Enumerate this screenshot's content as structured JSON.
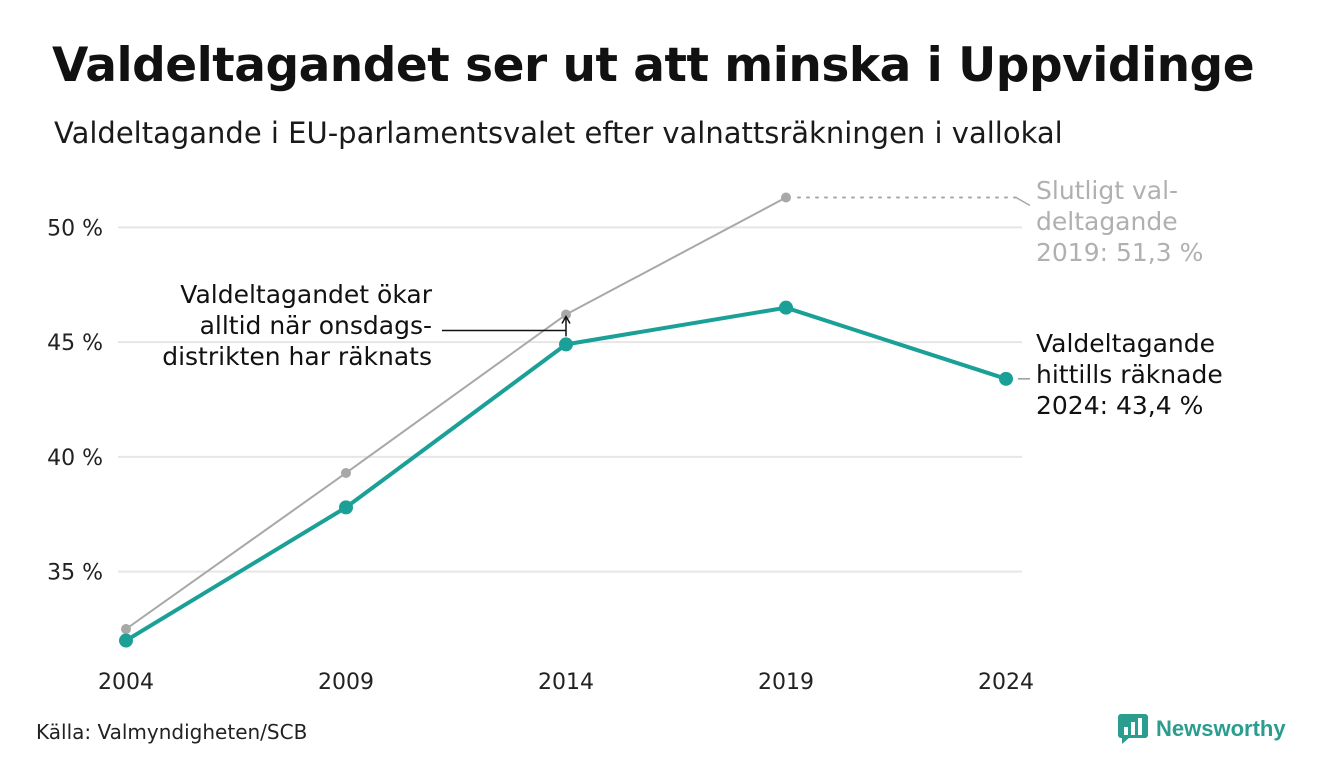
{
  "title": "Valdeltagandet ser ut att minska i Uppvidinge",
  "subtitle": "Valdeltagande i EU-parlamentsvalet efter valnattsräkningen i vallokal",
  "source": "Källa: Valmyndigheten/SCB",
  "brand": "Newsworthy",
  "colors": {
    "counted": "#1aa097",
    "final": "#a8a8a8",
    "grid": "#e6e6e6",
    "annotation_grey": "#b0b0b0"
  },
  "annotations": {
    "final": [
      "Slutligt val-",
      "deltagande",
      "2019: 51,3 %"
    ],
    "counted": [
      "Valdeltagande",
      "hittills räknade",
      "2024: 43,4 %"
    ],
    "wednesday": [
      "Valdeltagandet ökar",
      "alltid när onsdags-",
      "distrikten har räknats"
    ]
  },
  "chart_data": {
    "type": "line",
    "categories": [
      "2004",
      "2009",
      "2014",
      "2019",
      "2024"
    ],
    "x": [
      2004,
      2009,
      2014,
      2019,
      2024
    ],
    "series": [
      {
        "key": "final",
        "values": [
          32.5,
          39.3,
          46.2,
          51.3,
          null
        ]
      },
      {
        "key": "counted",
        "values": [
          32.0,
          37.8,
          44.9,
          46.5,
          43.4
        ]
      }
    ],
    "yticks": [
      35,
      40,
      45,
      50
    ],
    "ytick_labels": [
      "35 %",
      "40 %",
      "45 %",
      "50 %"
    ],
    "ylim": [
      31.5,
      51.8
    ],
    "grid": true,
    "legend": "none"
  }
}
